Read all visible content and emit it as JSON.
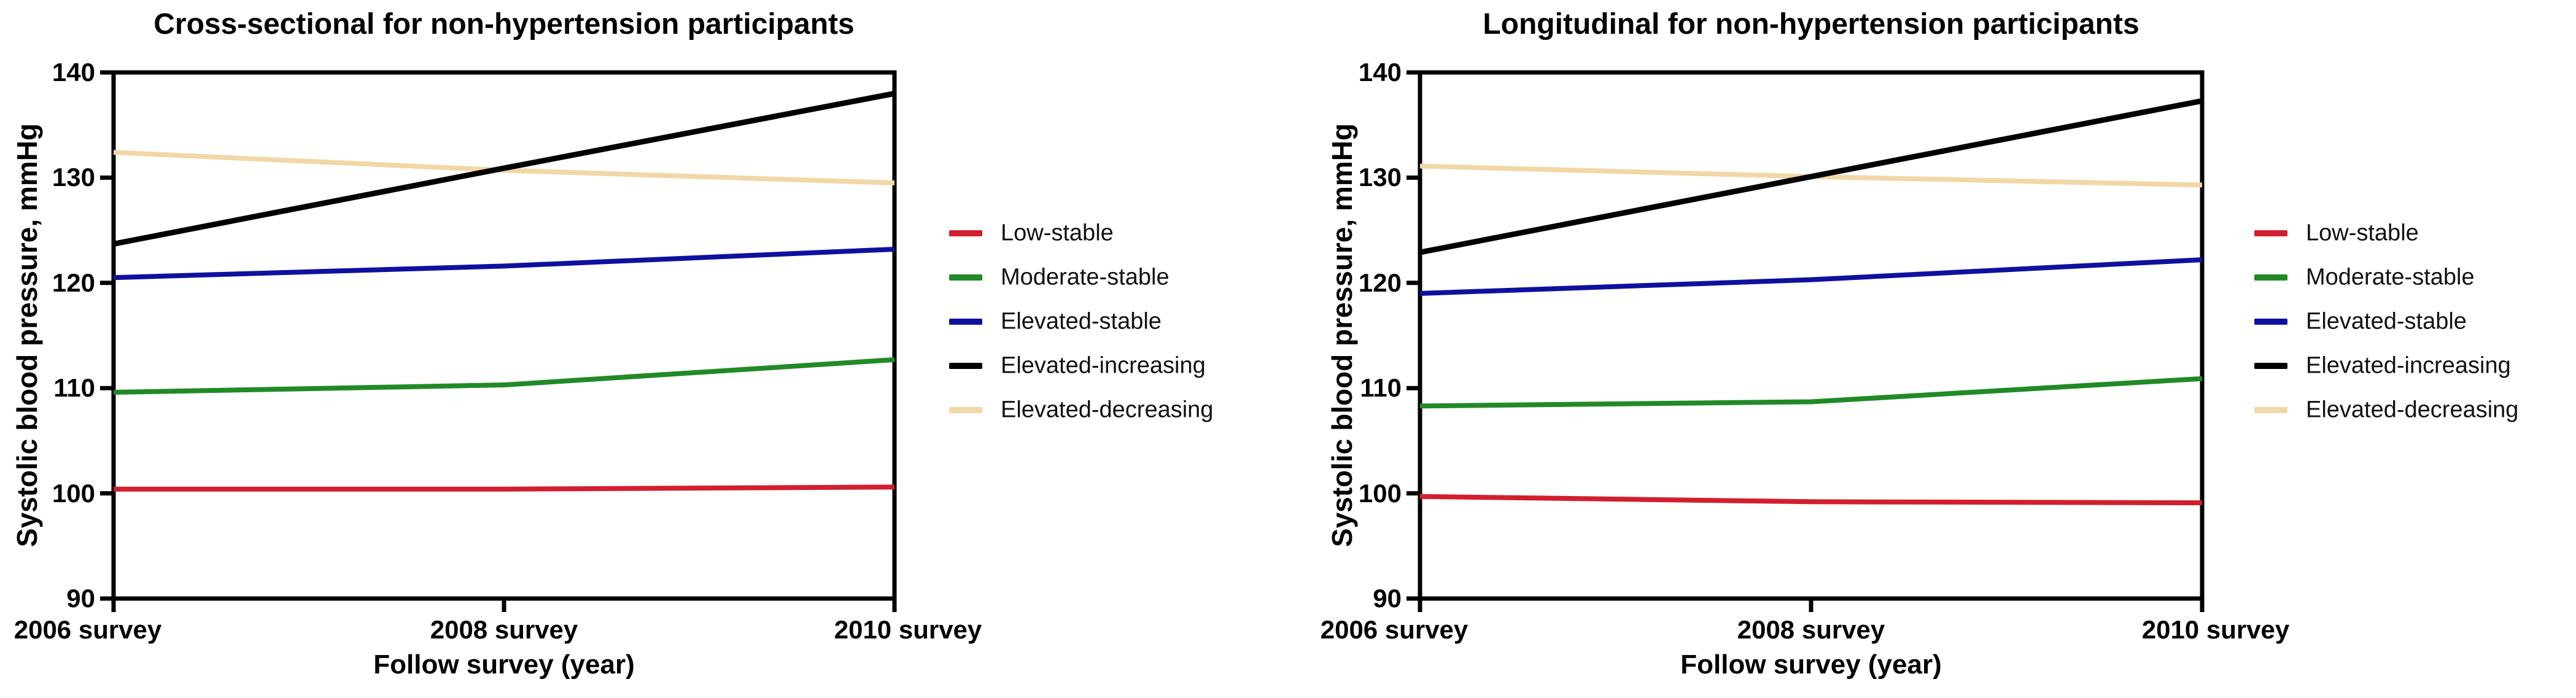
{
  "figure": {
    "background": "#ffffff",
    "text_color": "#000000"
  },
  "chart_data": [
    {
      "type": "line",
      "panel": "left",
      "title": "Cross-sectional for non-hypertension participants",
      "xlabel": "Follow survey (year)",
      "ylabel": "Systolic blood pressure, mmHg",
      "x_tick_labels": [
        "2006 survey",
        "2008 survey",
        "2010 survey"
      ],
      "y_ticks": [
        140,
        130,
        120,
        110,
        100,
        90
      ],
      "ylim": [
        90,
        140
      ],
      "grid": false,
      "legend_position": "right-of-plot",
      "series": [
        {
          "name": "Low-stable",
          "color": "#d21f2e",
          "values": [
            100.4,
            100.4,
            100.6
          ]
        },
        {
          "name": "Moderate-stable",
          "color": "#218a26",
          "values": [
            109.6,
            110.3,
            112.7
          ]
        },
        {
          "name": "Elevated-stable",
          "color": "#10109e",
          "values": [
            120.5,
            121.6,
            123.2
          ]
        },
        {
          "name": "Elevated-increasing",
          "color": "#000000",
          "values": [
            123.7,
            130.9,
            138.0
          ]
        },
        {
          "name": "Elevated-decreasing",
          "color": "#f2d7a6",
          "values": [
            132.4,
            130.7,
            129.5
          ]
        }
      ]
    },
    {
      "type": "line",
      "panel": "right",
      "title": "Longitudinal for non-hypertension participants",
      "xlabel": "Follow survey (year)",
      "ylabel": "Systolic blood pressure, mmHg",
      "x_tick_labels": [
        "2006 survey",
        "2008 survey",
        "2010 survey"
      ],
      "y_ticks": [
        140,
        130,
        120,
        110,
        100,
        90
      ],
      "ylim": [
        90,
        140
      ],
      "grid": false,
      "legend_position": "right-of-plot",
      "series": [
        {
          "name": "Low-stable",
          "color": "#d21f2e",
          "values": [
            99.7,
            99.2,
            99.1
          ]
        },
        {
          "name": "Moderate-stable",
          "color": "#218a26",
          "values": [
            108.3,
            108.7,
            110.9
          ]
        },
        {
          "name": "Elevated-stable",
          "color": "#10109e",
          "values": [
            119.0,
            120.3,
            122.2
          ]
        },
        {
          "name": "Elevated-increasing",
          "color": "#000000",
          "values": [
            122.9,
            130.1,
            137.3
          ]
        },
        {
          "name": "Elevated-decreasing",
          "color": "#f2d7a6",
          "values": [
            131.1,
            130.1,
            129.3
          ]
        }
      ]
    }
  ]
}
